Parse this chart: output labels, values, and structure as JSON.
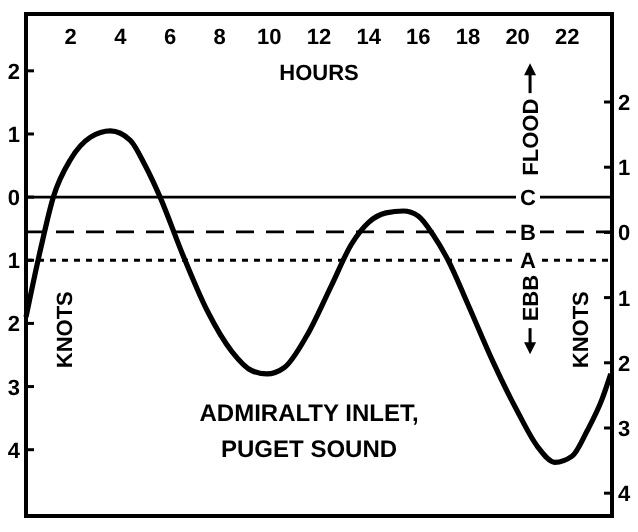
{
  "chart_data": {
    "type": "line",
    "title": "ADMIRALTY INLET, PUGET SOUND",
    "xlabel": "HOURS",
    "ylabel": "KNOTS",
    "y2label": "KNOTS",
    "annotations": [
      "FLOOD",
      "EBB"
    ],
    "x": [
      0.2,
      0.8,
      1.3,
      2.0,
      2.8,
      3.6,
      4.4,
      5.0,
      5.6,
      6.5,
      7.5,
      8.5,
      9.3,
      9.9,
      10.6,
      11.5,
      12.5,
      13.3,
      14.0,
      14.7,
      15.4,
      16.0,
      16.6,
      17.2,
      18.0,
      19.0,
      20.0,
      20.8,
      21.5,
      22.2,
      22.8,
      23.4,
      23.75
    ],
    "series": [
      {
        "color": "#000000",
        "values": [
          -1.9,
          -0.8,
          0,
          0.6,
          0.95,
          1.05,
          0.9,
          0.5,
          0,
          -0.9,
          -1.8,
          -2.45,
          -2.75,
          -2.8,
          -2.7,
          -2.2,
          -1.4,
          -0.75,
          -0.4,
          -0.25,
          -0.22,
          -0.3,
          -0.6,
          -1.0,
          -1.7,
          -2.6,
          -3.4,
          -3.95,
          -4.2,
          -4.1,
          -3.7,
          -3.2,
          -2.8
        ]
      }
    ],
    "xlim": [
      0.2,
      23.8
    ],
    "xticks": [
      2,
      4,
      6,
      8,
      10,
      12,
      14,
      16,
      18,
      20,
      22
    ],
    "ylim": [
      -5.05,
      2.9
    ],
    "yticks": [
      {
        "value": 2,
        "label": "2"
      },
      {
        "value": 1,
        "label": "1"
      },
      {
        "value": 0,
        "label": "0"
      },
      {
        "value": -1,
        "label": "1"
      },
      {
        "value": -2,
        "label": "2"
      },
      {
        "value": -3,
        "label": "3"
      },
      {
        "value": -4,
        "label": "4"
      }
    ],
    "y2lim": [
      -4.35,
      3.35
    ],
    "y2ticks": [
      {
        "value": 2,
        "label": "2"
      },
      {
        "value": 1,
        "label": "1"
      },
      {
        "value": 0,
        "label": "0"
      },
      {
        "value": -1,
        "label": "1"
      },
      {
        "value": -2,
        "label": "2"
      },
      {
        "value": -3,
        "label": "3"
      },
      {
        "value": -4,
        "label": "4"
      }
    ],
    "ref_lines": [
      {
        "axis": "y",
        "value": 0,
        "label": "C",
        "line_style": "solid",
        "color": "#000000"
      },
      {
        "axis": "y",
        "value": -0.55,
        "label": "B",
        "line_style": "dashed",
        "color": "#000000"
      },
      {
        "axis": "y",
        "value": -1.0,
        "label": "A",
        "line_style": "dotted",
        "color": "#000000"
      }
    ],
    "grid": false,
    "marker": "none",
    "line_style": "solid"
  }
}
